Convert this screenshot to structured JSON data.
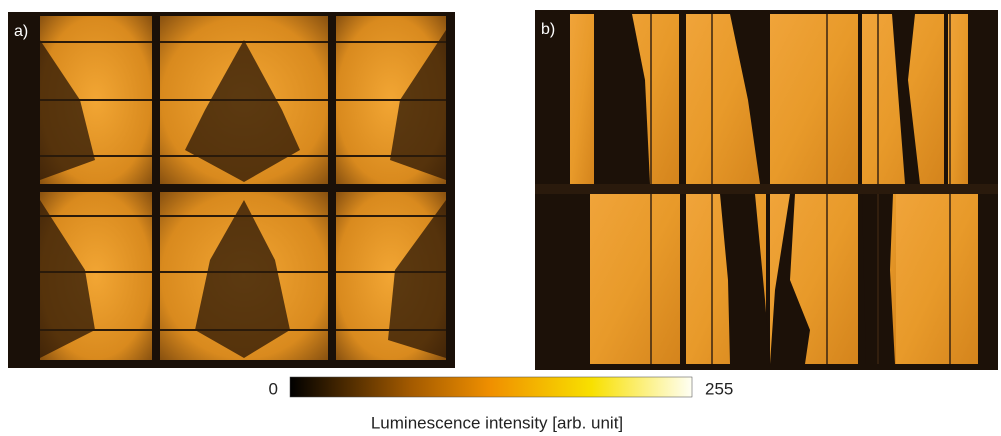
{
  "panels": [
    {
      "label": "a)"
    },
    {
      "label": "b)"
    }
  ],
  "colorbar": {
    "min": 0,
    "max": 255,
    "label": "Luminescence intensity [arb. unit]"
  }
}
